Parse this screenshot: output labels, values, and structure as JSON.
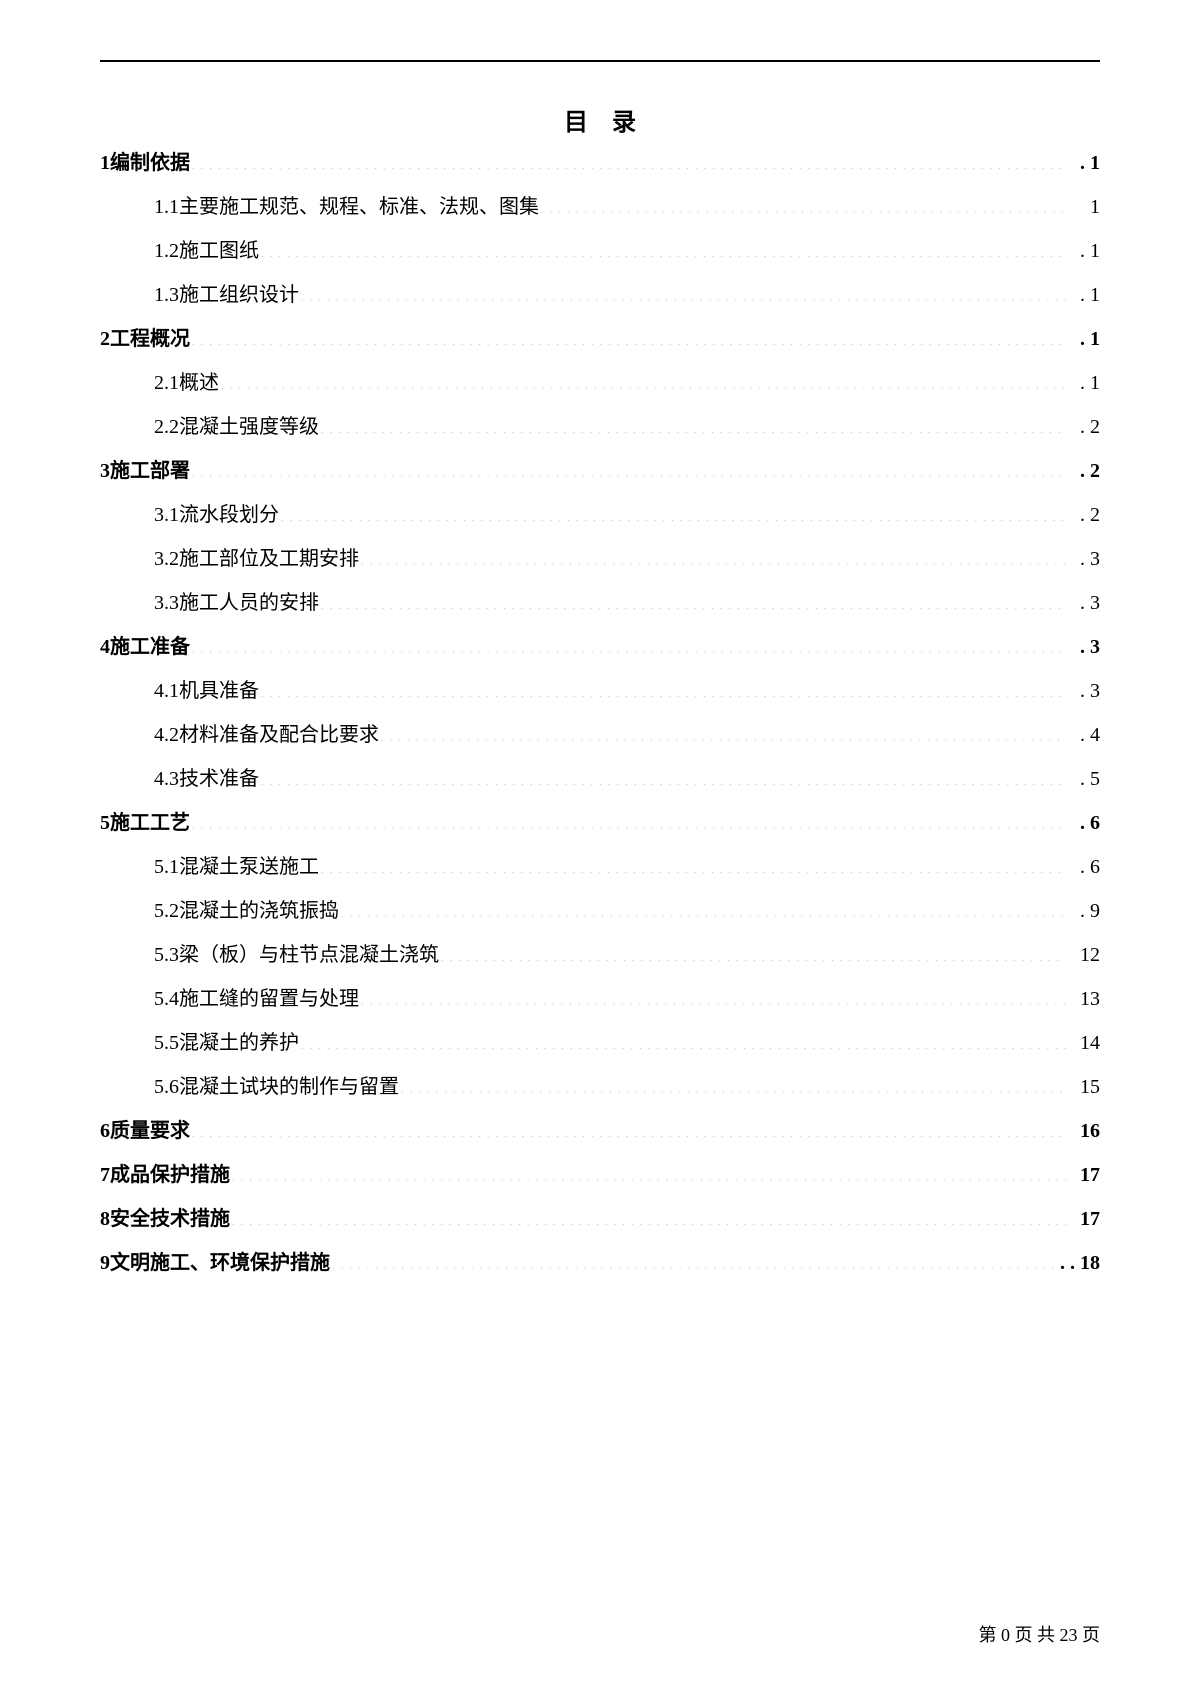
{
  "title": "目录",
  "entries": [
    {
      "level": 0,
      "num": "1",
      "label": "编制依据",
      "page": ". 1",
      "bold_page": true
    },
    {
      "level": 1,
      "num": "1.1",
      "label": "主要施工规范、规程、标准、法规、图集",
      "page": "1",
      "bold_page": false
    },
    {
      "level": 1,
      "num": "1.2",
      "label": "施工图纸",
      "page": ". 1",
      "bold_page": false
    },
    {
      "level": 1,
      "num": "1.3",
      "label": "施工组织设计",
      "page": ". 1",
      "bold_page": false
    },
    {
      "level": 0,
      "num": "2",
      "label": "工程概况",
      "page": ". 1",
      "bold_page": true
    },
    {
      "level": 1,
      "num": "2.1",
      "label": "概述",
      "page": ". 1",
      "bold_page": false
    },
    {
      "level": 1,
      "num": "2.2",
      "label": "混凝土强度等级",
      "page": ". 2",
      "bold_page": false
    },
    {
      "level": 0,
      "num": "3",
      "label": "施工部署",
      "page": ". 2",
      "bold_page": true
    },
    {
      "level": 1,
      "num": "3.1",
      "label": "流水段划分",
      "page": ". 2",
      "bold_page": false
    },
    {
      "level": 1,
      "num": "3.2",
      "label": "施工部位及工期安排",
      "page": ". 3",
      "bold_page": false
    },
    {
      "level": 1,
      "num": "3.3",
      "label": "施工人员的安排",
      "page": ". 3",
      "bold_page": false
    },
    {
      "level": 0,
      "num": "4",
      "label": "施工准备",
      "page": ". 3",
      "bold_page": true
    },
    {
      "level": 1,
      "num": "4.1",
      "label": "机具准备",
      "page": ". 3",
      "bold_page": false
    },
    {
      "level": 1,
      "num": "4.2",
      "label": "材料准备及配合比要求",
      "page": ". 4",
      "bold_page": false
    },
    {
      "level": 1,
      "num": "4.3",
      "label": "技术准备",
      "page": ". 5",
      "bold_page": false
    },
    {
      "level": 0,
      "num": "5",
      "label": "施工工艺",
      "page": ". 6",
      "bold_page": true
    },
    {
      "level": 1,
      "num": "5.1",
      "label": "混凝土泵送施工",
      "page": ". 6",
      "bold_page": false
    },
    {
      "level": 1,
      "num": "5.2",
      "label": "混凝土的浇筑振捣",
      "page": ". 9",
      "bold_page": false
    },
    {
      "level": 1,
      "num": "5.3",
      "label": "梁（板）与柱节点混凝土浇筑",
      "page": "12",
      "bold_page": false
    },
    {
      "level": 1,
      "num": "5.4",
      "label": "施工缝的留置与处理",
      "page": "13",
      "bold_page": false
    },
    {
      "level": 1,
      "num": "5.5",
      "label": "混凝土的养护",
      "page": "14",
      "bold_page": false
    },
    {
      "level": 1,
      "num": "5.6",
      "label": "混凝土试块的制作与留置",
      "page": "15",
      "bold_page": false
    },
    {
      "level": 0,
      "num": "6",
      "label": "质量要求",
      "page": "16",
      "bold_page": true
    },
    {
      "level": 0,
      "num": "7",
      "label": "成品保护措施",
      "page": "17",
      "bold_page": true
    },
    {
      "level": 0,
      "num": "8",
      "label": "安全技术措施",
      "page": "17",
      "bold_page": true
    },
    {
      "level": 0,
      "num": "9",
      "label": "文明施工、环境保护措施",
      "page": ". . 18",
      "bold_page": true
    }
  ],
  "footer": {
    "prefix": "第",
    "current": "0",
    "mid": "页 共",
    "total": "23",
    "suffix": "页"
  }
}
